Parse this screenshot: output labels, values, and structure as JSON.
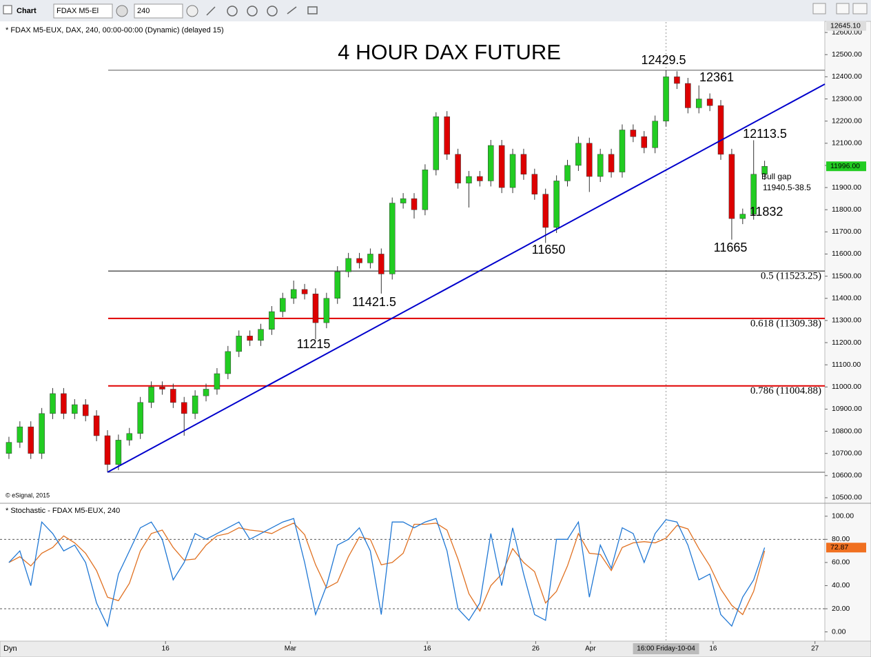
{
  "window": {
    "title": "Chart",
    "symbol": "FDAX M5-El",
    "interval": "240",
    "footer": "Dyn"
  },
  "chart_data": [
    {
      "type": "candlestick",
      "title": "4 HOUR DAX FUTURE",
      "subtitle": "* FDAX M5-EUX, DAX, 240, 00:00-00:00 (Dynamic) (delayed 15)",
      "credit": "© eSignal, 2015",
      "up_color": "#22cc22",
      "down_color": "#dd0000",
      "open": [
        10700,
        10750,
        10820,
        10700,
        10880,
        10970,
        10880,
        10920,
        10870,
        10780,
        10650,
        10760,
        10790,
        10930,
        11000,
        10990,
        10930,
        10880,
        10960,
        10990,
        11060,
        11160,
        11230,
        11210,
        11260,
        11340,
        11400,
        11440,
        11420,
        11290,
        11400,
        11520,
        11580,
        11560,
        11600,
        11510,
        11830,
        11850,
        11800,
        11980,
        12220,
        12050,
        11920,
        11950,
        11930,
        12090,
        11900,
        12050,
        11960,
        11870,
        11720,
        11930,
        12000,
        12100,
        11950,
        12050,
        11970,
        12160,
        12130,
        12080,
        12200,
        12400,
        12370,
        12260,
        12300,
        12270,
        12050,
        11760,
        11780,
        11960
      ],
      "high": [
        10775,
        10845,
        10845,
        10905,
        10995,
        10995,
        10945,
        10945,
        10895,
        10805,
        10785,
        10815,
        10955,
        11025,
        11025,
        11015,
        10955,
        10985,
        11015,
        11085,
        11185,
        11255,
        11255,
        11285,
        11365,
        11425,
        11480,
        11465,
        11445,
        11425,
        11545,
        11605,
        11605,
        11625,
        11625,
        11855,
        11875,
        11875,
        12005,
        12240,
        12245,
        12075,
        11975,
        11975,
        12115,
        12115,
        12075,
        12075,
        11985,
        11895,
        11955,
        12025,
        12130,
        12125,
        12075,
        12075,
        12185,
        12185,
        12155,
        12225,
        12429.5,
        12425,
        12395,
        12361,
        12325,
        12295,
        12075,
        11805,
        12113.5,
        12021
      ],
      "low": [
        10675,
        10725,
        10675,
        10675,
        10855,
        10855,
        10855,
        10845,
        10755,
        10615,
        10625,
        10735,
        10765,
        10905,
        10965,
        10905,
        10780,
        10855,
        10935,
        10965,
        11035,
        11135,
        11185,
        11185,
        11235,
        11315,
        11375,
        11395,
        11215,
        11265,
        11375,
        11495,
        11535,
        11535,
        11421.5,
        11485,
        11805,
        11760,
        11775,
        11955,
        12025,
        11895,
        11810,
        11905,
        11905,
        11875,
        11875,
        11935,
        11845,
        11650,
        11695,
        11905,
        11975,
        11880,
        11925,
        11945,
        11945,
        12105,
        12055,
        12055,
        12175,
        12345,
        12235,
        12235,
        12245,
        12025,
        11665,
        11735,
        11755,
        11935
      ],
      "close": [
        10750,
        10820,
        10700,
        10880,
        10970,
        10880,
        10920,
        10870,
        10780,
        10650,
        10760,
        10790,
        10930,
        11000,
        10990,
        10930,
        10880,
        10960,
        10990,
        11060,
        11160,
        11230,
        11210,
        11260,
        11340,
        11400,
        11440,
        11420,
        11290,
        11400,
        11520,
        11580,
        11560,
        11600,
        11510,
        11830,
        11850,
        11800,
        11980,
        12220,
        12050,
        11920,
        11950,
        11930,
        12090,
        11900,
        12050,
        11960,
        11870,
        11720,
        11930,
        12000,
        12100,
        11950,
        12050,
        11970,
        12160,
        12130,
        12080,
        12200,
        12400,
        12370,
        12260,
        12300,
        12270,
        12050,
        11760,
        11780,
        11960,
        11996
      ],
      "last_price_label": "11996.00",
      "last_price_color": "#22cc22",
      "cursor_price": {
        "value": 12645.1,
        "label": "12645.10"
      },
      "xlim": [
        -0.5,
        74.5
      ],
      "xticks": [
        {
          "value": 14.3,
          "label": "16"
        },
        {
          "value": 25.7,
          "label": "Mar"
        },
        {
          "value": 38.2,
          "label": "16"
        },
        {
          "value": 48.1,
          "label": "26"
        },
        {
          "value": 53.1,
          "label": "Apr"
        },
        {
          "value": 64.3,
          "label": "16"
        },
        {
          "value": 73.6,
          "label": "27"
        }
      ],
      "crosshair": {
        "x": 60,
        "label": "16:00 Friday-10-04"
      },
      "ylim": [
        10475,
        12647
      ],
      "yticks": [
        {
          "value": 10500,
          "label": "10500.00"
        },
        {
          "value": 10600,
          "label": "10600.00"
        },
        {
          "value": 10700,
          "label": "10700.00"
        },
        {
          "value": 10800,
          "label": "10800.00"
        },
        {
          "value": 10900,
          "label": "10900.00"
        },
        {
          "value": 11000,
          "label": "11000.00"
        },
        {
          "value": 11100,
          "label": "11100.00"
        },
        {
          "value": 11200,
          "label": "11200.00"
        },
        {
          "value": 11300,
          "label": "11300.00"
        },
        {
          "value": 11400,
          "label": "11400.00"
        },
        {
          "value": 11500,
          "label": "11500.00"
        },
        {
          "value": 11600,
          "label": "11600.00"
        },
        {
          "value": 11700,
          "label": "11700.00"
        },
        {
          "value": 11800,
          "label": "11800.00"
        },
        {
          "value": 11900,
          "label": "11900.00"
        },
        {
          "value": 12000,
          "label": "12000.00"
        },
        {
          "value": 12100,
          "label": "12100.00"
        },
        {
          "value": 12200,
          "label": "12200.00"
        },
        {
          "value": 12300,
          "label": "12300.00"
        },
        {
          "value": 12400,
          "label": "12400.00"
        },
        {
          "value": 12500,
          "label": "12500.00"
        },
        {
          "value": 12600,
          "label": "12600.00"
        }
      ],
      "levels": [
        {
          "value": 12429.5,
          "color": "#555555"
        },
        {
          "value": 10615,
          "color": "#555555"
        },
        {
          "value": 11523.25,
          "label": "0.5 (11523.25)",
          "color": "#000000"
        },
        {
          "value": 11309.38,
          "label": "0.618 (11309.38)",
          "color": "#e00000"
        },
        {
          "value": 11004.88,
          "label": "0.786 (11004.88)",
          "color": "#e00000"
        }
      ],
      "trendline": {
        "x": [
          9,
          74.5
        ],
        "values": [
          10615,
          12367
        ],
        "color": "#0000cc"
      },
      "annotations": [
        "12429.5",
        "12361",
        "12113.5",
        "11832",
        "11665",
        "11650",
        "11421.5",
        "11215"
      ],
      "gap_note": [
        "Bull gap",
        "11940.5-38.5"
      ]
    },
    {
      "type": "line",
      "title": "* Stochastic - FDAX M5-EUX, 240",
      "series": [
        {
          "color": "#1f77d4",
          "values": [
            60,
            70,
            40,
            95,
            85,
            70,
            75,
            60,
            25,
            5,
            50,
            70,
            90,
            95,
            80,
            45,
            60,
            85,
            80,
            85,
            90,
            95,
            80,
            85,
            90,
            95,
            98,
            60,
            15,
            40,
            75,
            80,
            90,
            70,
            15,
            95,
            95,
            90,
            95,
            98,
            70,
            20,
            10,
            25,
            85,
            40,
            90,
            50,
            15,
            10,
            80,
            80,
            95,
            30,
            75,
            55,
            90,
            85,
            60,
            85,
            97,
            95,
            75,
            45,
            50,
            15,
            5,
            30,
            45,
            72.87
          ]
        },
        {
          "color": "#e07020",
          "values": [
            60,
            65,
            57,
            68,
            73,
            83,
            77,
            68,
            53,
            30,
            27,
            42,
            70,
            85,
            88,
            73,
            62,
            63,
            75,
            83,
            85,
            90,
            88,
            87,
            85,
            90,
            94,
            84,
            58,
            38,
            43,
            65,
            82,
            80,
            58,
            60,
            68,
            93,
            93,
            94,
            88,
            63,
            33,
            18,
            40,
            50,
            72,
            60,
            52,
            25,
            35,
            57,
            85,
            68,
            67,
            53,
            73,
            77,
            78,
            77,
            81,
            92,
            89,
            72,
            57,
            37,
            23,
            15,
            35,
            70
          ]
        }
      ],
      "last_color": "#f07020",
      "xlim": [
        -0.5,
        74.5
      ],
      "ylim": [
        -8,
        110
      ],
      "yticks": [
        {
          "value": 0,
          "label": "0.00"
        },
        {
          "value": 20,
          "label": "20.00"
        },
        {
          "value": 40,
          "label": "40.00"
        },
        {
          "value": 60,
          "label": "60.00"
        },
        {
          "value": 80,
          "label": "80.00"
        },
        {
          "value": 100,
          "label": "100.00"
        }
      ],
      "dashed_levels": [
        20,
        80
      ]
    }
  ]
}
